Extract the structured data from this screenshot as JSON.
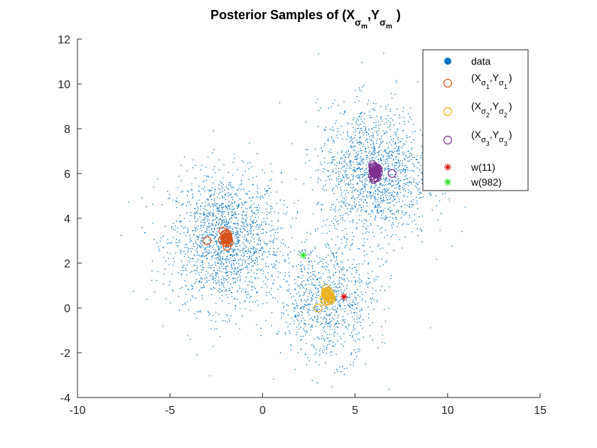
{
  "chart_data": {
    "type": "scatter",
    "title": {
      "prefix": "Posterior Samples of (X",
      "sub_sigma": "σ",
      "sub_m": "m",
      "mid": ",Y",
      "suffix": ")"
    },
    "xlim": [
      -10,
      15
    ],
    "ylim": [
      -4,
      12
    ],
    "xticks": [
      "-10",
      "-5",
      "0",
      "5",
      "10",
      "15"
    ],
    "yticks": [
      "-4",
      "-2",
      "0",
      "2",
      "4",
      "6",
      "8",
      "10",
      "12"
    ],
    "grid": false,
    "legend_position": "top-right",
    "colors": {
      "data": "#0072BD",
      "sample1": "#D95319",
      "sample2": "#EDB120",
      "sample3": "#7E2F8E",
      "w11": "#DD0000",
      "w982": "#22DD22"
    },
    "data_clusters": [
      {
        "center": [
          -2,
          3
        ],
        "spread": 1.5,
        "count": 1700
      },
      {
        "center": [
          6,
          6
        ],
        "spread": 1.5,
        "count": 1500
      },
      {
        "center": [
          3.5,
          0.3
        ],
        "spread": 1.3,
        "count": 900
      }
    ],
    "posterior_samples": [
      {
        "label_index": "1",
        "color": "#D95319",
        "cluster": [
          -2,
          3.05
        ],
        "highlighted": [
          -3,
          3
        ]
      },
      {
        "label_index": "2",
        "color": "#EDB120",
        "cluster": [
          3.5,
          0.5
        ],
        "highlighted": [
          3,
          0
        ]
      },
      {
        "label_index": "3",
        "color": "#7E2F8E",
        "cluster": [
          6.05,
          6.05
        ],
        "highlighted": [
          7,
          6
        ]
      }
    ],
    "w_points": [
      {
        "label": "w(11)",
        "x": 4.4,
        "y": 0.5,
        "color": "#DD0000"
      },
      {
        "label": "w(982)",
        "x": 2.2,
        "y": 2.35,
        "color": "#22DD22"
      }
    ],
    "legend": {
      "data": "data",
      "open": "(X",
      "sigma": "σ",
      "mid": ",Y",
      "close": ")",
      "w11": "w(11)",
      "w982": "w(982)"
    }
  }
}
